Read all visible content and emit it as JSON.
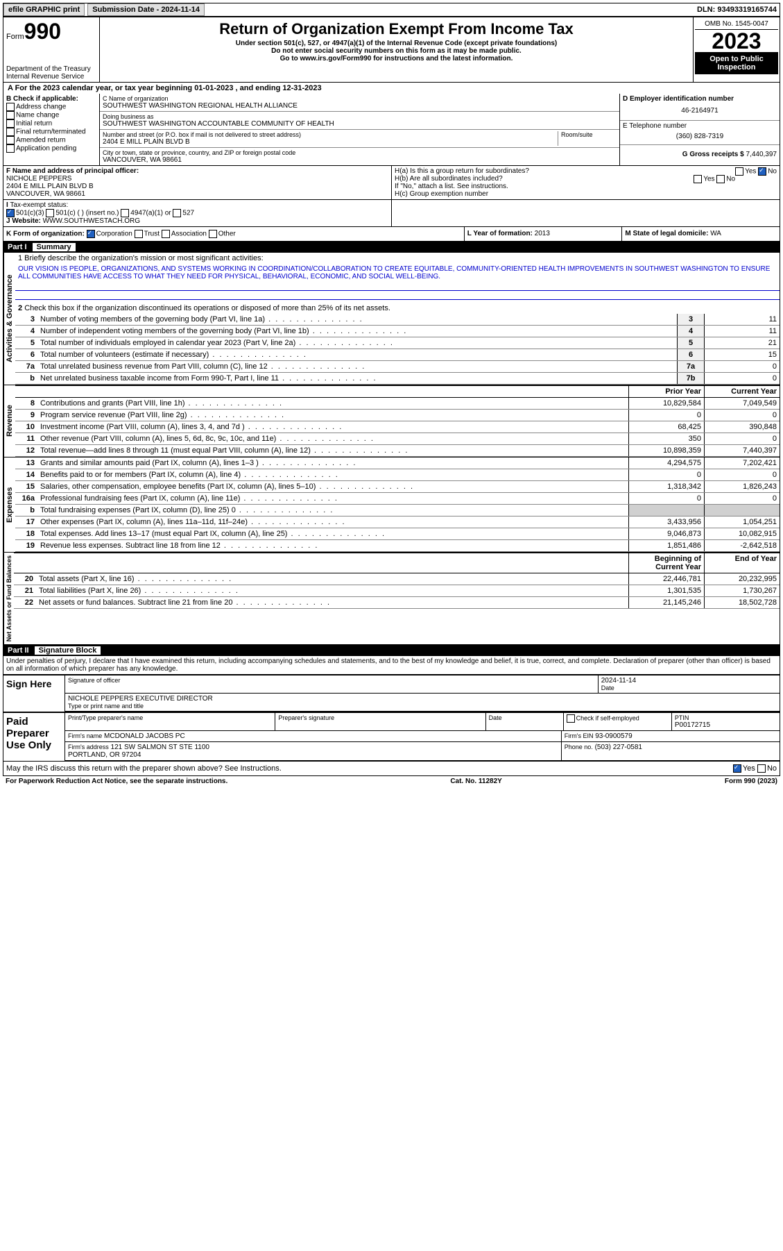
{
  "topbar": {
    "efile": "efile GRAPHIC print",
    "submission": "Submission Date - 2024-11-14",
    "dln": "DLN: 93493319165744"
  },
  "header": {
    "form_label": "Form",
    "form_num": "990",
    "dept": "Department of the Treasury",
    "irs": "Internal Revenue Service",
    "title": "Return of Organization Exempt From Income Tax",
    "sub1": "Under section 501(c), 527, or 4947(a)(1) of the Internal Revenue Code (except private foundations)",
    "sub2": "Do not enter social security numbers on this form as it may be made public.",
    "sub3": "Go to www.irs.gov/Form990 for instructions and the latest information.",
    "omb": "OMB No. 1545-0047",
    "year": "2023",
    "open": "Open to Public Inspection"
  },
  "line_a": "A For the 2023 calendar year, or tax year beginning 01-01-2023   , and ending 12-31-2023",
  "box_b": {
    "label": "B Check if applicable:",
    "items": [
      "Address change",
      "Name change",
      "Initial return",
      "Final return/terminated",
      "Amended return",
      "Application pending"
    ]
  },
  "box_c": {
    "name_label": "C Name of organization",
    "name": "SOUTHWEST WASHINGTON REGIONAL HEALTH ALLIANCE",
    "dba_label": "Doing business as",
    "dba": "SOUTHWEST WASHINGTON ACCOUNTABLE COMMUNITY OF HEALTH",
    "addr_label": "Number and street (or P.O. box if mail is not delivered to street address)",
    "addr": "2404 E MILL PLAIN BLVD B",
    "room_label": "Room/suite",
    "city_label": "City or town, state or province, country, and ZIP or foreign postal code",
    "city": "VANCOUVER, WA  98661"
  },
  "box_d": {
    "label": "D Employer identification number",
    "value": "46-2164971"
  },
  "box_e": {
    "label": "E Telephone number",
    "value": "(360) 828-7319"
  },
  "box_g": {
    "label": "G Gross receipts $",
    "value": "7,440,397"
  },
  "box_f": {
    "label": "F Name and address of principal officer:",
    "name": "NICHOLE PEPPERS",
    "addr1": "2404 E MILL PLAIN BLVD B",
    "addr2": "VANCOUVER, WA  98661"
  },
  "box_h": {
    "ha": "H(a)  Is this a group return for subordinates?",
    "hb": "H(b)  Are all subordinates included?",
    "hb_note": "If \"No,\" attach a list. See instructions.",
    "hc": "H(c)  Group exemption number",
    "yes": "Yes",
    "no": "No"
  },
  "box_i": {
    "label": "Tax-exempt status:",
    "opts": [
      "501(c)(3)",
      "501(c) (  ) (insert no.)",
      "4947(a)(1) or",
      "527"
    ]
  },
  "box_j": {
    "label": "Website:",
    "value": "WWW.SOUTHWESTACH.ORG"
  },
  "box_k": {
    "label": "K Form of organization:",
    "opts": [
      "Corporation",
      "Trust",
      "Association",
      "Other"
    ]
  },
  "box_l": {
    "label": "L Year of formation:",
    "value": "2013"
  },
  "box_m": {
    "label": "M State of legal domicile:",
    "value": "WA"
  },
  "part1": {
    "num": "Part I",
    "title": "Summary"
  },
  "sidelabels": {
    "ag": "Activities & Governance",
    "rev": "Revenue",
    "exp": "Expenses",
    "na": "Net Assets or Fund Balances"
  },
  "mission_label": "1  Briefly describe the organization's mission or most significant activities:",
  "mission": "OUR VISION IS PEOPLE, ORGANIZATIONS, AND SYSTEMS WORKING IN COORDINATION/COLLABORATION TO CREATE EQUITABLE, COMMUNITY-ORIENTED HEALTH IMPROVEMENTS IN SOUTHWEST WASHINGTON TO ENSURE ALL COMMUNITIES HAVE ACCESS TO WHAT THEY NEED FOR PHYSICAL, BEHAVIORAL, ECONOMIC, AND SOCIAL WELL-BEING.",
  "line2": "Check this box  if the organization discontinued its operations or disposed of more than 25% of its net assets.",
  "ag_rows": [
    {
      "n": "3",
      "t": "Number of voting members of the governing body (Part VI, line 1a)",
      "b": "3",
      "v": "11"
    },
    {
      "n": "4",
      "t": "Number of independent voting members of the governing body (Part VI, line 1b)",
      "b": "4",
      "v": "11"
    },
    {
      "n": "5",
      "t": "Total number of individuals employed in calendar year 2023 (Part V, line 2a)",
      "b": "5",
      "v": "21"
    },
    {
      "n": "6",
      "t": "Total number of volunteers (estimate if necessary)",
      "b": "6",
      "v": "15"
    },
    {
      "n": "7a",
      "t": "Total unrelated business revenue from Part VIII, column (C), line 12",
      "b": "7a",
      "v": "0"
    },
    {
      "n": "b",
      "t": "Net unrelated business taxable income from Form 990-T, Part I, line 11",
      "b": "7b",
      "v": "0"
    }
  ],
  "col_headers": {
    "prior": "Prior Year",
    "current": "Current Year"
  },
  "rev_rows": [
    {
      "n": "8",
      "t": "Contributions and grants (Part VIII, line 1h)",
      "p": "10,829,584",
      "c": "7,049,549"
    },
    {
      "n": "9",
      "t": "Program service revenue (Part VIII, line 2g)",
      "p": "0",
      "c": "0"
    },
    {
      "n": "10",
      "t": "Investment income (Part VIII, column (A), lines 3, 4, and 7d )",
      "p": "68,425",
      "c": "390,848"
    },
    {
      "n": "11",
      "t": "Other revenue (Part VIII, column (A), lines 5, 6d, 8c, 9c, 10c, and 11e)",
      "p": "350",
      "c": "0"
    },
    {
      "n": "12",
      "t": "Total revenue—add lines 8 through 11 (must equal Part VIII, column (A), line 12)",
      "p": "10,898,359",
      "c": "7,440,397"
    }
  ],
  "exp_rows": [
    {
      "n": "13",
      "t": "Grants and similar amounts paid (Part IX, column (A), lines 1–3 )",
      "p": "4,294,575",
      "c": "7,202,421"
    },
    {
      "n": "14",
      "t": "Benefits paid to or for members (Part IX, column (A), line 4)",
      "p": "0",
      "c": "0"
    },
    {
      "n": "15",
      "t": "Salaries, other compensation, employee benefits (Part IX, column (A), lines 5–10)",
      "p": "1,318,342",
      "c": "1,826,243"
    },
    {
      "n": "16a",
      "t": "Professional fundraising fees (Part IX, column (A), line 11e)",
      "p": "0",
      "c": "0"
    },
    {
      "n": "b",
      "t": "Total fundraising expenses (Part IX, column (D), line 25) 0",
      "p": "",
      "c": "",
      "shaded": true
    },
    {
      "n": "17",
      "t": "Other expenses (Part IX, column (A), lines 11a–11d, 11f–24e)",
      "p": "3,433,956",
      "c": "1,054,251"
    },
    {
      "n": "18",
      "t": "Total expenses. Add lines 13–17 (must equal Part IX, column (A), line 25)",
      "p": "9,046,873",
      "c": "10,082,915"
    },
    {
      "n": "19",
      "t": "Revenue less expenses. Subtract line 18 from line 12",
      "p": "1,851,486",
      "c": "-2,642,518"
    }
  ],
  "na_headers": {
    "begin": "Beginning of Current Year",
    "end": "End of Year"
  },
  "na_rows": [
    {
      "n": "20",
      "t": "Total assets (Part X, line 16)",
      "p": "22,446,781",
      "c": "20,232,995"
    },
    {
      "n": "21",
      "t": "Total liabilities (Part X, line 26)",
      "p": "1,301,535",
      "c": "1,730,267"
    },
    {
      "n": "22",
      "t": "Net assets or fund balances. Subtract line 21 from line 20",
      "p": "21,145,246",
      "c": "18,502,728"
    }
  ],
  "part2": {
    "num": "Part II",
    "title": "Signature Block"
  },
  "perjury": "Under penalties of perjury, I declare that I have examined this return, including accompanying schedules and statements, and to the best of my knowledge and belief, it is true, correct, and complete. Declaration of preparer (other than officer) is based on all information of which preparer has any knowledge.",
  "sign": {
    "here": "Sign Here",
    "sig_label": "Signature of officer",
    "name": "NICHOLE PEPPERS EXECUTIVE DIRECTOR",
    "name_label": "Type or print name and title",
    "date_label": "Date",
    "date": "2024-11-14"
  },
  "paid": {
    "title": "Paid Preparer Use Only",
    "prep_name_label": "Print/Type preparer's name",
    "prep_sig_label": "Preparer's signature",
    "date_label": "Date",
    "check_label": "Check  if self-employed",
    "ptin_label": "PTIN",
    "ptin": "P00172715",
    "firm_name_label": "Firm's name",
    "firm_name": "MCDONALD JACOBS PC",
    "firm_ein_label": "Firm's EIN",
    "firm_ein": "93-0900579",
    "firm_addr_label": "Firm's address",
    "firm_addr": "121 SW SALMON ST STE 1100",
    "firm_city": "PORTLAND, OR  97204",
    "phone_label": "Phone no.",
    "phone": "(503) 227-0581"
  },
  "discuss": "May the IRS discuss this return with the preparer shown above? See Instructions.",
  "footer": {
    "left": "For Paperwork Reduction Act Notice, see the separate instructions.",
    "mid": "Cat. No. 11282Y",
    "right": "Form 990 (2023)"
  }
}
